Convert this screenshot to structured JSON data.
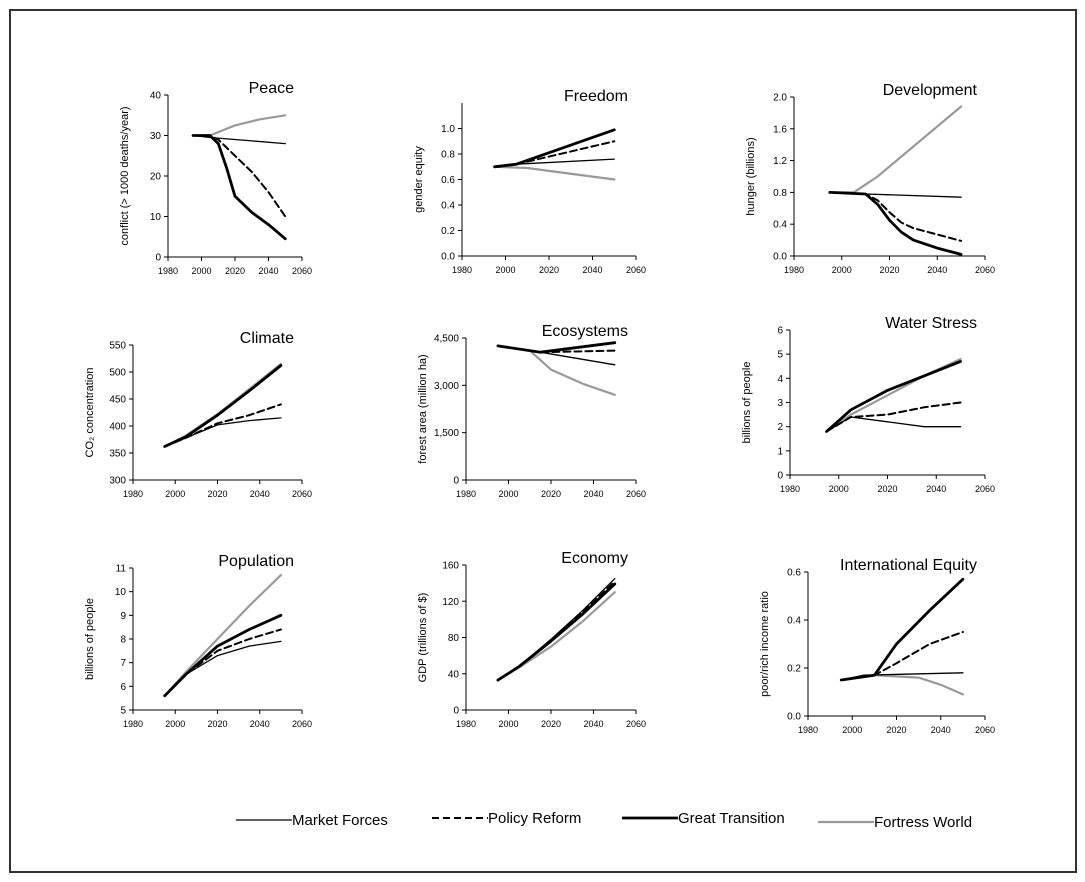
{
  "chart_data": [
    {
      "type": "line",
      "title": "Peace",
      "ylabel": "conflict (> 1000 deaths/year)",
      "xlim": [
        1980,
        2060
      ],
      "ylim": [
        0,
        40
      ],
      "xticks": [
        "1980",
        "2000",
        "2020",
        "2040",
        "2060"
      ],
      "yticks": [
        "0",
        "10",
        "20",
        "30",
        "40"
      ],
      "series": [
        {
          "name": "Market Forces",
          "x": [
            1995,
            2005,
            2050
          ],
          "y": [
            30,
            29.5,
            28
          ]
        },
        {
          "name": "Policy Reform",
          "x": [
            1995,
            2005,
            2010,
            2020,
            2030,
            2040,
            2050
          ],
          "y": [
            30,
            30,
            29,
            25,
            21,
            16,
            10
          ]
        },
        {
          "name": "Great Transition",
          "x": [
            1995,
            2005,
            2010,
            2015,
            2020,
            2030,
            2040,
            2050
          ],
          "y": [
            30,
            30,
            28,
            22,
            15,
            11,
            8,
            4.5
          ]
        },
        {
          "name": "Fortress World",
          "x": [
            1995,
            2005,
            2020,
            2035,
            2050
          ],
          "y": [
            30,
            30,
            32.5,
            34,
            35
          ]
        }
      ]
    },
    {
      "type": "line",
      "title": "Freedom",
      "ylabel": "gender equity",
      "xlim": [
        1980,
        2060
      ],
      "ylim": [
        0,
        1.2
      ],
      "xticks": [
        "1980",
        "2000",
        "2020",
        "2040",
        "2060"
      ],
      "yticks": [
        "0.0",
        "0.2",
        "0.4",
        "0.6",
        "0.8",
        "1.0"
      ],
      "series": [
        {
          "name": "Market Forces",
          "x": [
            1995,
            2005,
            2050
          ],
          "y": [
            0.7,
            0.72,
            0.76
          ]
        },
        {
          "name": "Policy Reform",
          "x": [
            1995,
            2005,
            2050
          ],
          "y": [
            0.7,
            0.72,
            0.9
          ]
        },
        {
          "name": "Great Transition",
          "x": [
            1995,
            2005,
            2050
          ],
          "y": [
            0.7,
            0.72,
            0.99
          ]
        },
        {
          "name": "Fortress World",
          "x": [
            1995,
            2010,
            2050
          ],
          "y": [
            0.7,
            0.69,
            0.6
          ]
        }
      ]
    },
    {
      "type": "line",
      "title": "Development",
      "ylabel": "hunger (billions)",
      "xlim": [
        1980,
        2060
      ],
      "ylim": [
        0,
        2.0
      ],
      "xticks": [
        "1980",
        "2000",
        "2020",
        "2040",
        "2060"
      ],
      "yticks": [
        "0.0",
        "0.4",
        "0.8",
        "1.2",
        "1.6",
        "2.0"
      ],
      "series": [
        {
          "name": "Market Forces",
          "x": [
            1995,
            2010,
            2050
          ],
          "y": [
            0.8,
            0.78,
            0.74
          ]
        },
        {
          "name": "Policy Reform",
          "x": [
            1995,
            2010,
            2015,
            2020,
            2025,
            2030,
            2040,
            2050
          ],
          "y": [
            0.8,
            0.78,
            0.7,
            0.55,
            0.42,
            0.35,
            0.27,
            0.19
          ]
        },
        {
          "name": "Great Transition",
          "x": [
            1995,
            2010,
            2015,
            2020,
            2025,
            2030,
            2040,
            2050
          ],
          "y": [
            0.8,
            0.78,
            0.65,
            0.45,
            0.3,
            0.2,
            0.1,
            0.02
          ]
        },
        {
          "name": "Fortress World",
          "x": [
            1995,
            2005,
            2015,
            2050
          ],
          "y": [
            0.8,
            0.8,
            1.0,
            1.88
          ]
        }
      ]
    },
    {
      "type": "line",
      "title": "Climate",
      "ylabel": "CO₂ concentration",
      "xlim": [
        1980,
        2060
      ],
      "ylim": [
        300,
        550
      ],
      "xticks": [
        "1980",
        "2000",
        "2020",
        "2040",
        "2060"
      ],
      "yticks": [
        "300",
        "350",
        "400",
        "450",
        "500",
        "550"
      ],
      "series": [
        {
          "name": "Market Forces",
          "x": [
            1995,
            2005,
            2020,
            2035,
            2050
          ],
          "y": [
            362,
            378,
            402,
            410,
            415
          ]
        },
        {
          "name": "Policy Reform",
          "x": [
            1995,
            2005,
            2020,
            2035,
            2050
          ],
          "y": [
            362,
            378,
            405,
            420,
            440
          ]
        },
        {
          "name": "Great Transition",
          "x": [
            1995,
            2005,
            2020,
            2035,
            2050
          ],
          "y": [
            362,
            380,
            420,
            465,
            512
          ]
        },
        {
          "name": "Fortress World",
          "x": [
            1995,
            2005,
            2020,
            2035,
            2050
          ],
          "y": [
            362,
            382,
            422,
            468,
            515
          ]
        }
      ]
    },
    {
      "type": "line",
      "title": "Ecosystems",
      "ylabel": "forest area (million ha)",
      "xlim": [
        1980,
        2060
      ],
      "ylim": [
        0,
        4500
      ],
      "xticks": [
        "1980",
        "2000",
        "2020",
        "2040",
        "2060"
      ],
      "yticks": [
        "0",
        "1,500",
        "3,000",
        "4,500"
      ],
      "series": [
        {
          "name": "Market Forces",
          "x": [
            1995,
            2015,
            2050
          ],
          "y": [
            4250,
            4050,
            3650
          ]
        },
        {
          "name": "Policy Reform",
          "x": [
            1995,
            2015,
            2050
          ],
          "y": [
            4250,
            4050,
            4100
          ]
        },
        {
          "name": "Great Transition",
          "x": [
            1995,
            2015,
            2050
          ],
          "y": [
            4250,
            4050,
            4350
          ]
        },
        {
          "name": "Fortress World",
          "x": [
            1995,
            2010,
            2020,
            2035,
            2050
          ],
          "y": [
            4250,
            4100,
            3500,
            3050,
            2700
          ]
        }
      ]
    },
    {
      "type": "line",
      "title": "Water Stress",
      "ylabel": "billions of people",
      "xlim": [
        1980,
        2060
      ],
      "ylim": [
        0,
        6
      ],
      "xticks": [
        "1980",
        "2000",
        "2020",
        "2040",
        "2060"
      ],
      "yticks": [
        "0",
        "1",
        "2",
        "3",
        "4",
        "5",
        "6"
      ],
      "series": [
        {
          "name": "Market Forces",
          "x": [
            1995,
            2005,
            2020,
            2035,
            2050
          ],
          "y": [
            1.8,
            2.4,
            2.2,
            2.0,
            2.0
          ]
        },
        {
          "name": "Policy Reform",
          "x": [
            1995,
            2005,
            2020,
            2035,
            2050
          ],
          "y": [
            1.8,
            2.4,
            2.5,
            2.8,
            3.0
          ]
        },
        {
          "name": "Great Transition",
          "x": [
            1995,
            2005,
            2020,
            2035,
            2050
          ],
          "y": [
            1.8,
            2.7,
            3.5,
            4.1,
            4.7
          ]
        },
        {
          "name": "Fortress World",
          "x": [
            1995,
            2005,
            2020,
            2035,
            2050
          ],
          "y": [
            1.8,
            2.5,
            3.3,
            4.1,
            4.8
          ]
        }
      ]
    },
    {
      "type": "line",
      "title": "Population",
      "ylabel": "billions of people",
      "xlim": [
        1980,
        2060
      ],
      "ylim": [
        5,
        11
      ],
      "xticks": [
        "1980",
        "2000",
        "2020",
        "2040",
        "2060"
      ],
      "yticks": [
        "5",
        "6",
        "7",
        "8",
        "9",
        "10",
        "11"
      ],
      "series": [
        {
          "name": "Market Forces",
          "x": [
            1995,
            2005,
            2020,
            2035,
            2050
          ],
          "y": [
            5.6,
            6.5,
            7.3,
            7.7,
            7.9
          ]
        },
        {
          "name": "Policy Reform",
          "x": [
            1995,
            2005,
            2020,
            2035,
            2050
          ],
          "y": [
            5.6,
            6.5,
            7.5,
            8.0,
            8.4
          ]
        },
        {
          "name": "Great Transition",
          "x": [
            1995,
            2005,
            2020,
            2035,
            2050
          ],
          "y": [
            5.6,
            6.5,
            7.7,
            8.4,
            9.0
          ]
        },
        {
          "name": "Fortress World",
          "x": [
            1995,
            2005,
            2020,
            2035,
            2050
          ],
          "y": [
            5.6,
            6.6,
            8.0,
            9.4,
            10.7
          ]
        }
      ]
    },
    {
      "type": "line",
      "title": "Economy",
      "ylabel": "GDP (trillions of $)",
      "xlim": [
        1980,
        2060
      ],
      "ylim": [
        0,
        160
      ],
      "xticks": [
        "1980",
        "2000",
        "2020",
        "2040",
        "2060"
      ],
      "yticks": [
        "0",
        "40",
        "80",
        "120",
        "160"
      ],
      "series": [
        {
          "name": "Market Forces",
          "x": [
            1995,
            2005,
            2020,
            2035,
            2050
          ],
          "y": [
            33,
            48,
            78,
            110,
            145
          ]
        },
        {
          "name": "Policy Reform",
          "x": [
            1995,
            2005,
            2020,
            2035,
            2050
          ],
          "y": [
            33,
            48,
            77,
            108,
            142
          ]
        },
        {
          "name": "Great Transition",
          "x": [
            1995,
            2005,
            2020,
            2035,
            2050
          ],
          "y": [
            33,
            48,
            76,
            106,
            139
          ]
        },
        {
          "name": "Fortress World",
          "x": [
            1995,
            2005,
            2020,
            2035,
            2050
          ],
          "y": [
            33,
            47,
            70,
            98,
            130
          ]
        }
      ]
    },
    {
      "type": "line",
      "title": "International Equity",
      "ylabel": "poor/rich income ratio",
      "xlim": [
        1980,
        2060
      ],
      "ylim": [
        0,
        0.6
      ],
      "xticks": [
        "1980",
        "2000",
        "2020",
        "2040",
        "2060"
      ],
      "yticks": [
        "0.0",
        "0.2",
        "0.4",
        "0.6"
      ],
      "series": [
        {
          "name": "Market Forces",
          "x": [
            1995,
            2005,
            2050
          ],
          "y": [
            0.15,
            0.17,
            0.18
          ]
        },
        {
          "name": "Policy Reform",
          "x": [
            1995,
            2010,
            2020,
            2035,
            2050
          ],
          "y": [
            0.15,
            0.17,
            0.22,
            0.3,
            0.35
          ]
        },
        {
          "name": "Great Transition",
          "x": [
            1995,
            2010,
            2020,
            2035,
            2050
          ],
          "y": [
            0.15,
            0.17,
            0.3,
            0.44,
            0.57
          ]
        },
        {
          "name": "Fortress World",
          "x": [
            1995,
            2010,
            2030,
            2040,
            2050
          ],
          "y": [
            0.15,
            0.17,
            0.16,
            0.13,
            0.09
          ]
        }
      ]
    }
  ],
  "legend": [
    {
      "label": "Market Forces",
      "style": "thin",
      "color": "#000000"
    },
    {
      "label": "Policy Reform",
      "style": "dashed",
      "color": "#000000"
    },
    {
      "label": "Great Transition",
      "style": "thick",
      "color": "#000000"
    },
    {
      "label": "Fortress World",
      "style": "gray",
      "color": "#999999"
    }
  ],
  "colors": {
    "axis": "#000000",
    "fortress": "#999999",
    "line": "#000000"
  }
}
